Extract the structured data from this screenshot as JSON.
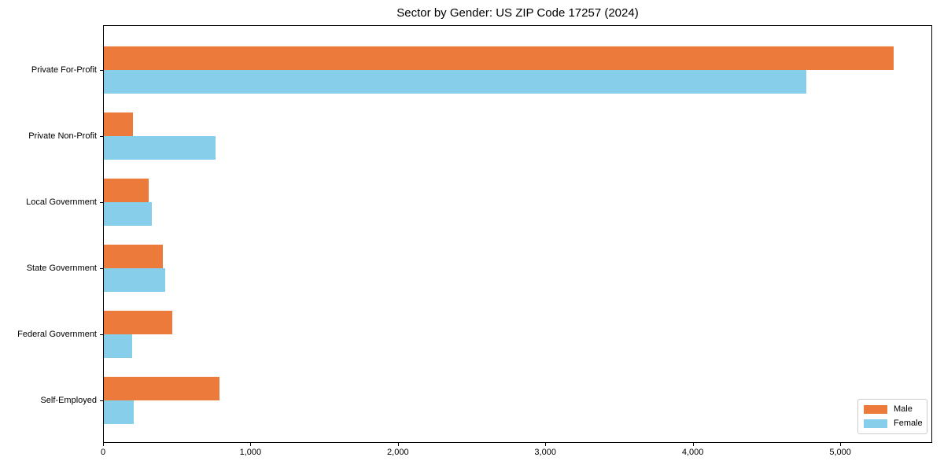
{
  "chart_data": {
    "type": "bar",
    "orientation": "horizontal",
    "title": "Sector by Gender: US ZIP Code 17257 (2024)",
    "categories": [
      "Private For-Profit",
      "Private Non-Profit",
      "Local Government",
      "State Government",
      "Federal Government",
      "Self-Employed"
    ],
    "series": [
      {
        "name": "Male",
        "color": "#EB7A3B",
        "values": [
          5356,
          198,
          302,
          400,
          466,
          784
        ]
      },
      {
        "name": "Female",
        "color": "#87CEEB",
        "values": [
          4766,
          758,
          327,
          417,
          190,
          204
        ]
      }
    ],
    "xlabel": "",
    "ylabel": "",
    "xlim": [
      0,
      5624
    ],
    "x_ticks": [
      0,
      1000,
      2000,
      3000,
      4000,
      5000
    ],
    "x_tick_labels": [
      "0",
      "1,000",
      "2,000",
      "3,000",
      "4,000",
      "5,000"
    ],
    "legend_position": "lower right",
    "grid": false,
    "colors": {
      "axis": "#000000",
      "legend_border": "#cccccc",
      "background": "#ffffff"
    }
  }
}
